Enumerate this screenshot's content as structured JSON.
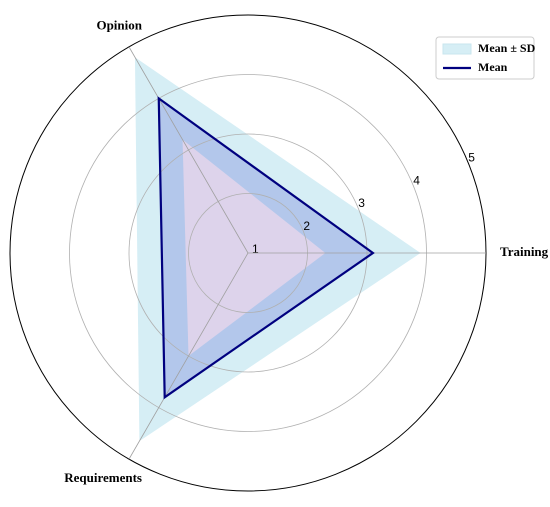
{
  "chart_data": {
    "type": "radar",
    "categories": [
      "Training",
      "Opinion",
      "Requirements"
    ],
    "rlim": [
      1,
      5
    ],
    "rticks": [
      1,
      2,
      3,
      4,
      5
    ],
    "grid": true,
    "legend": "upper right",
    "series": [
      {
        "name": "Mean ± SD",
        "color": "#d6eef5",
        "lower": [
          2.3,
          3.2,
          3.0
        ],
        "upper": [
          3.9,
          4.8,
          4.65
        ]
      },
      {
        "name": "Mean",
        "color": "#00007f",
        "values": [
          3.1,
          4.0,
          3.8
        ]
      }
    ]
  }
}
